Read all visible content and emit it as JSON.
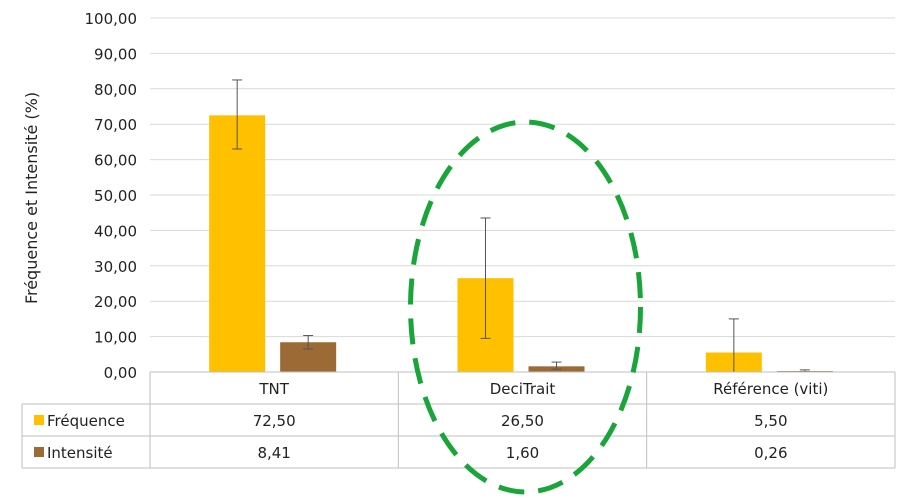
{
  "chart_data": {
    "type": "bar",
    "ylabel": "Fréquence et Intensité (%)",
    "ylim": [
      0,
      100
    ],
    "yticks": [
      "0,00",
      "10,00",
      "20,00",
      "30,00",
      "40,00",
      "50,00",
      "60,00",
      "70,00",
      "80,00",
      "90,00",
      "100,00"
    ],
    "grid": true,
    "legend": "data table below chart",
    "categories": [
      "TNT",
      "DeciTrait",
      "Référence (viti)"
    ],
    "series": [
      {
        "name": "Fréquence",
        "color": "#FFC000",
        "values": [
          72.5,
          26.5,
          5.5
        ],
        "value_labels": [
          "72,50",
          "26,50",
          "5,50"
        ],
        "error_low": [
          63.0,
          9.5,
          0.0
        ],
        "error_high": [
          82.5,
          43.5,
          15.0
        ]
      },
      {
        "name": "Intensité",
        "color": "#9C6A34",
        "values": [
          8.41,
          1.6,
          0.26
        ],
        "value_labels": [
          "8,41",
          "1,60",
          "0,26"
        ],
        "error_low": [
          6.5,
          0.8,
          0.05
        ],
        "error_high": [
          10.3,
          2.8,
          0.6
        ]
      }
    ],
    "annotation": {
      "shape": "dashed ellipse",
      "color": "#1AA53A",
      "highlights": "DeciTrait"
    }
  }
}
